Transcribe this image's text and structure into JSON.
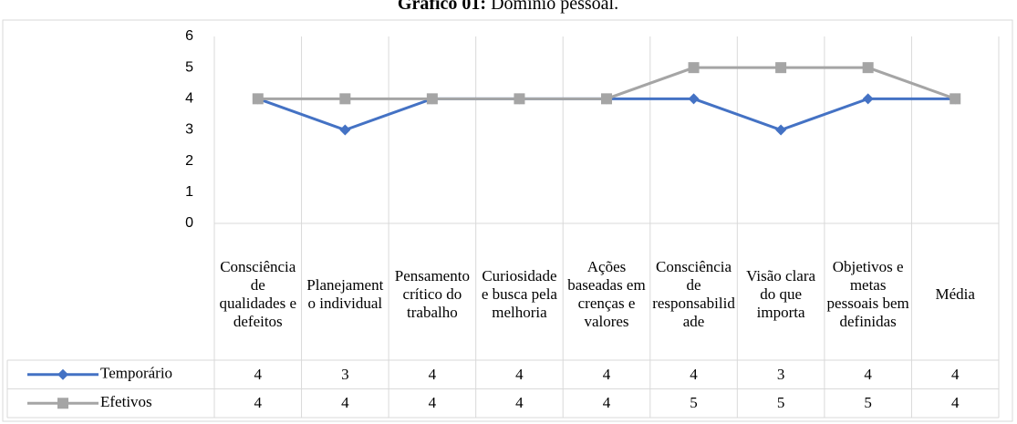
{
  "chart_data": {
    "type": "line",
    "title": [
      "Gráfico 01:",
      "Domínio pessoal."
    ],
    "categories": [
      "Consciência de qualidades e defeitos",
      "Planejamento individual",
      "Pensamento crítico do trabalho",
      "Curiosidade e busca pela melhoria",
      "Ações baseadas em crenças e valores",
      "Consciência de responsabilidade",
      "Visão clara do que importa",
      "Objetivos e metas pessoais bem definidas",
      "Média"
    ],
    "series": [
      {
        "name": "Temporário",
        "color": "#4472c4",
        "marker": "diamond",
        "values": [
          4,
          3,
          4,
          4,
          4,
          4,
          3,
          4,
          4
        ]
      },
      {
        "name": "Efetivos",
        "color": "#a5a5a5",
        "marker": "square",
        "values": [
          4,
          4,
          4,
          4,
          4,
          5,
          5,
          5,
          4
        ]
      }
    ],
    "ylim": [
      0,
      6
    ],
    "yticks": [
      0,
      1,
      2,
      3,
      4,
      5,
      6
    ],
    "grid": "vertical",
    "data_table": true
  }
}
